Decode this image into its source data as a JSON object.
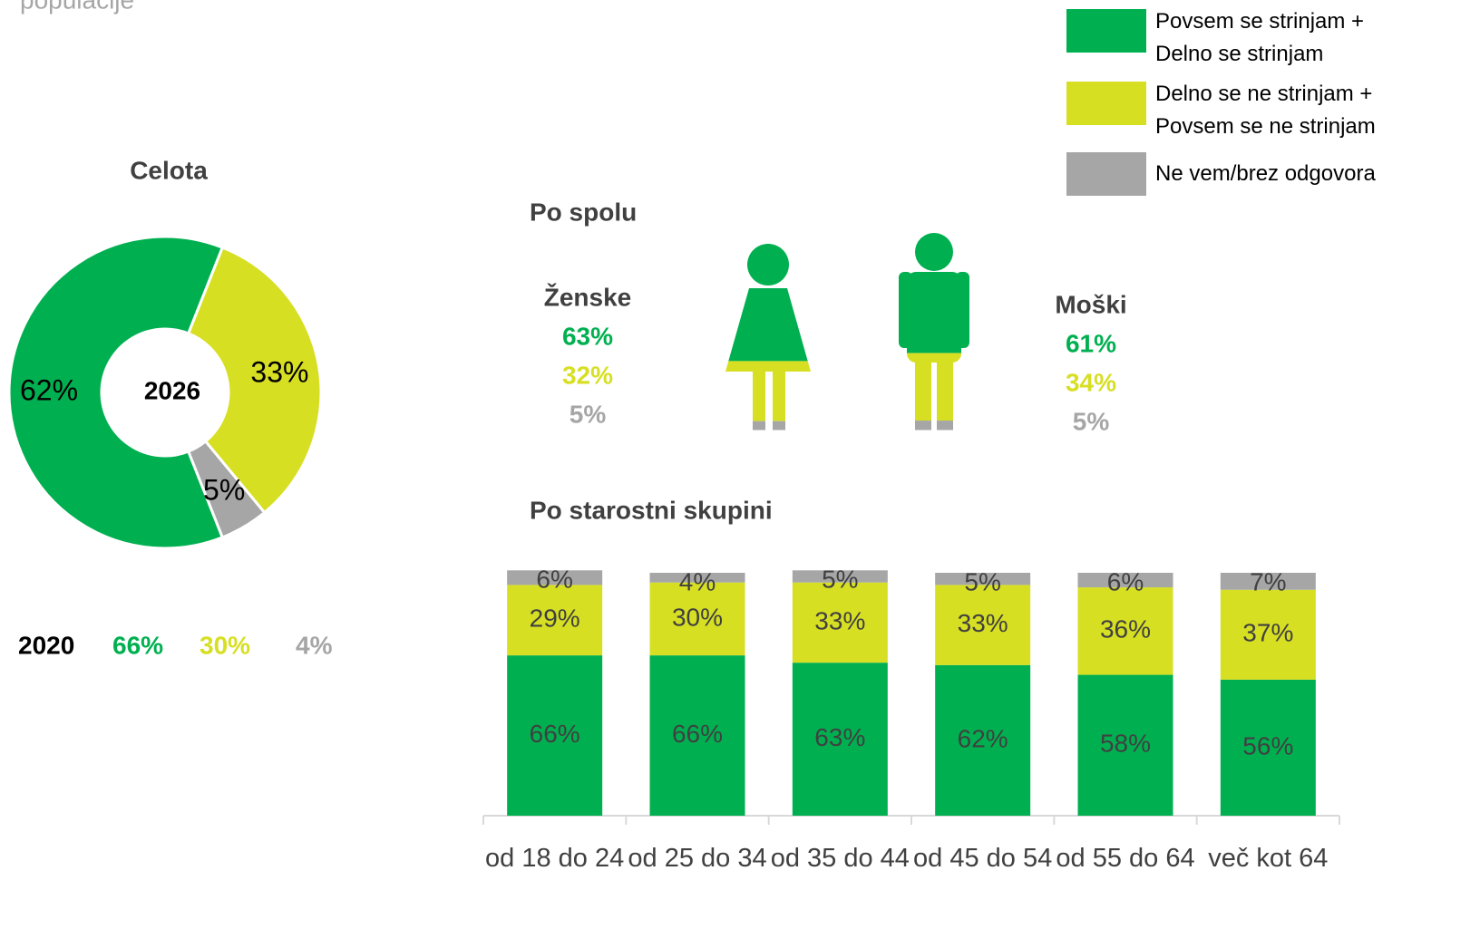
{
  "header": {
    "title": "populacije"
  },
  "chart_data": [
    {
      "type": "pie",
      "title": "Celota",
      "center_label": "2026",
      "values": [
        62,
        33,
        5
      ],
      "value_labels": [
        "62%",
        "33%",
        "5%"
      ],
      "colors": [
        "#00b050",
        "#d7df23",
        "#a6a6a6"
      ]
    },
    {
      "type": "stacked_bar",
      "title": "Po starostni skupini",
      "categories": [
        "od 18 do 24",
        "od 25 do 34",
        "od 35 do 44",
        "od 45 do 54",
        "od 55 do 64",
        "več kot 64"
      ],
      "ylim": [
        0,
        100
      ],
      "series": [
        {
          "name": "Povsem se strinjam + Delno se strinjam",
          "color": "#00b050",
          "values": [
            66,
            66,
            63,
            62,
            58,
            56
          ],
          "value_labels": [
            "66%",
            "66%",
            "63%",
            "62%",
            "58%",
            "56%"
          ]
        },
        {
          "name": "Delno se ne strinjam + Povsem se ne strinjam",
          "color": "#d7df23",
          "values": [
            29,
            30,
            33,
            33,
            36,
            37
          ],
          "value_labels": [
            "29%",
            "30%",
            "33%",
            "33%",
            "36%",
            "37%"
          ]
        },
        {
          "name": "Ne vem/brez odgovora",
          "color": "#a6a6a6",
          "values": [
            6,
            4,
            5,
            5,
            6,
            7
          ],
          "value_labels": [
            "6%",
            "4%",
            "5%",
            "5%",
            "6%",
            "7%"
          ]
        }
      ]
    }
  ],
  "gender": {
    "title": "Po spolu",
    "groups": [
      {
        "name": "Ženske",
        "values": [
          63,
          32,
          5
        ],
        "value_labels": [
          "63%",
          "32%",
          "5%"
        ]
      },
      {
        "name": "Moški",
        "values": [
          61,
          34,
          5
        ],
        "value_labels": [
          "61%",
          "34%",
          "5%"
        ]
      }
    ]
  },
  "comparison": {
    "label": "2020",
    "values": [
      66,
      30,
      4
    ],
    "value_labels": [
      "66%",
      "30%",
      "4%"
    ]
  }
}
